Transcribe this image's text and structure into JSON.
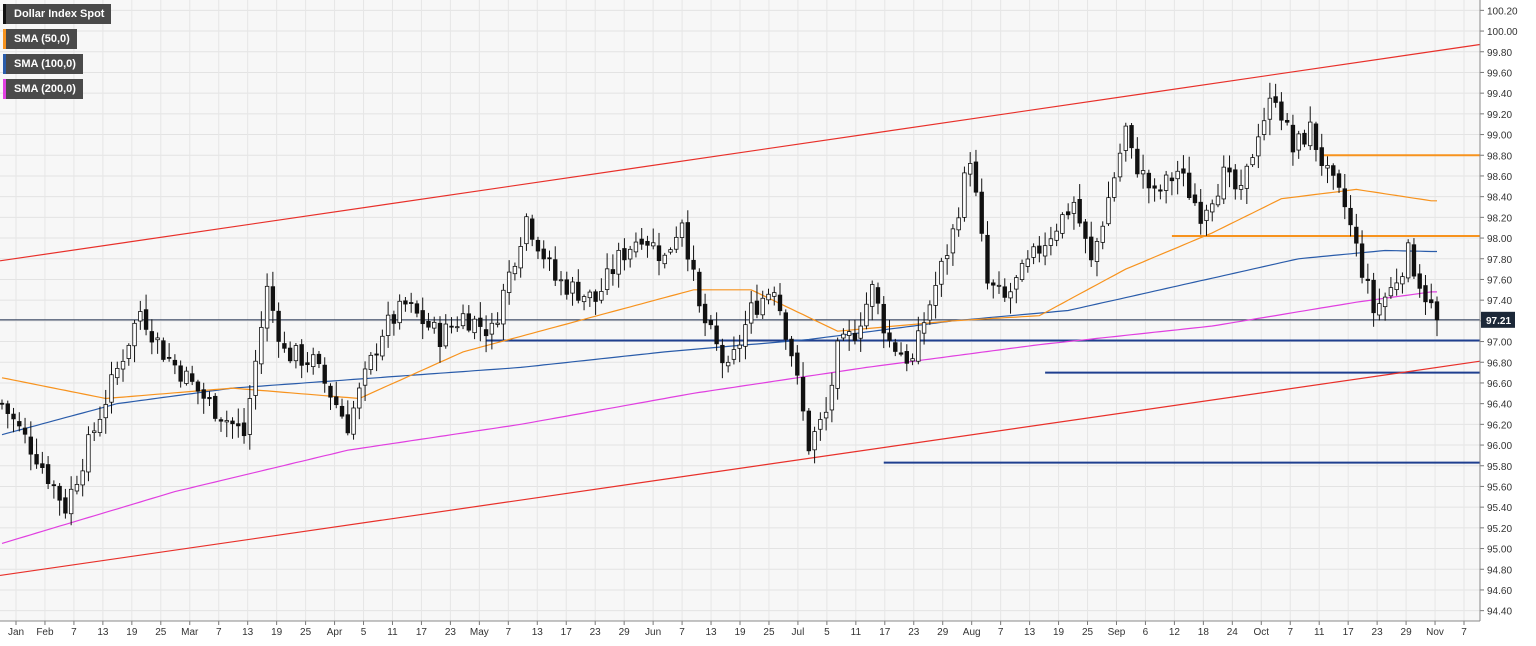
{
  "chart_data": {
    "type": "candlestick",
    "title": "Dollar Index Spot",
    "legend": [
      {
        "name": "Dollar Index Spot",
        "color": "#111111"
      },
      {
        "name": "SMA (50,0)",
        "color": "#f7931e"
      },
      {
        "name": "SMA (100,0)",
        "color": "#2a5caa"
      },
      {
        "name": "SMA (200,0)",
        "color": "#e040e0"
      }
    ],
    "legend_position": "top-left",
    "y_axis": {
      "position": "right",
      "range": [
        94.3,
        100.3
      ],
      "ticks": [
        "100.20",
        "100.00",
        "99.80",
        "99.60",
        "99.40",
        "99.20",
        "99.00",
        "98.80",
        "98.60",
        "98.40",
        "98.20",
        "98.00",
        "97.80",
        "97.60",
        "97.40",
        "97.20",
        "97.00",
        "96.80",
        "96.60",
        "96.40",
        "96.20",
        "96.00",
        "95.80",
        "95.60",
        "95.40",
        "95.20",
        "95.00",
        "94.80",
        "94.60",
        "94.40"
      ]
    },
    "x_axis": {
      "ticks": [
        "Jan",
        "Feb",
        "7",
        "13",
        "19",
        "25",
        "Mar",
        "7",
        "13",
        "19",
        "25",
        "Apr",
        "5",
        "11",
        "17",
        "23",
        "May",
        "7",
        "13",
        "17",
        "23",
        "29",
        "Jun",
        "7",
        "13",
        "19",
        "25",
        "Jul",
        "5",
        "11",
        "17",
        "23",
        "29",
        "Aug",
        "7",
        "13",
        "19",
        "25",
        "Sep",
        "6",
        "12",
        "18",
        "24",
        "Oct",
        "7",
        "11",
        "17",
        "23",
        "29",
        "Nov",
        "7"
      ]
    },
    "grid": true,
    "last_price": {
      "label": "97.21",
      "value": 97.21
    },
    "channel_upper": {
      "start": 97.78,
      "end": 99.87,
      "color": "#e8302a"
    },
    "channel_lower": {
      "start": 94.74,
      "end": 96.81,
      "color": "#e8302a"
    },
    "horizontal_levels": [
      {
        "value": 98.8,
        "color": "#f7931e"
      },
      {
        "value": 98.02,
        "color": "#f7931e"
      },
      {
        "value": 97.01,
        "color": "#1f3f8f"
      },
      {
        "value": 96.7,
        "color": "#1f3f8f"
      },
      {
        "value": 95.83,
        "color": "#1f3f8f"
      }
    ],
    "price_waypoints": [
      [
        0,
        96.4
      ],
      [
        6,
        95.9
      ],
      [
        11,
        95.4
      ],
      [
        17,
        96.3
      ],
      [
        24,
        97.3
      ],
      [
        28,
        96.9
      ],
      [
        36,
        96.4
      ],
      [
        42,
        96.1
      ],
      [
        46,
        97.5
      ],
      [
        49,
        96.9
      ],
      [
        54,
        96.8
      ],
      [
        60,
        96.2
      ],
      [
        62,
        96.5
      ],
      [
        66,
        97.1
      ],
      [
        70,
        97.35
      ],
      [
        76,
        97.05
      ],
      [
        80,
        97.25
      ],
      [
        85,
        97.1
      ],
      [
        91,
        98.2
      ],
      [
        96,
        97.6
      ],
      [
        103,
        97.4
      ],
      [
        107,
        97.8
      ],
      [
        111,
        98.05
      ],
      [
        115,
        97.8
      ],
      [
        118,
        98.2
      ],
      [
        121,
        97.3
      ],
      [
        126,
        96.7
      ],
      [
        130,
        97.3
      ],
      [
        134,
        97.55
      ],
      [
        137,
        96.9
      ],
      [
        140,
        96.0
      ],
      [
        143,
        96.3
      ],
      [
        145,
        96.9
      ],
      [
        148,
        97.1
      ],
      [
        151,
        97.5
      ],
      [
        154,
        97.0
      ],
      [
        158,
        96.8
      ],
      [
        160,
        97.2
      ],
      [
        165,
        98.05
      ],
      [
        168,
        98.8
      ],
      [
        171,
        97.55
      ],
      [
        174,
        97.4
      ],
      [
        180,
        97.9
      ],
      [
        186,
        98.35
      ],
      [
        189,
        97.75
      ],
      [
        193,
        98.6
      ],
      [
        195,
        99.05
      ],
      [
        196,
        98.8
      ],
      [
        200,
        98.4
      ],
      [
        204,
        98.65
      ],
      [
        208,
        98.25
      ],
      [
        212,
        98.6
      ],
      [
        215,
        98.4
      ],
      [
        218,
        99.05
      ],
      [
        221,
        99.4
      ],
      [
        224,
        98.85
      ],
      [
        227,
        99.05
      ],
      [
        230,
        98.6
      ],
      [
        233,
        98.3
      ],
      [
        236,
        97.7
      ],
      [
        238,
        97.3
      ],
      [
        241,
        97.5
      ],
      [
        244,
        97.85
      ],
      [
        247,
        97.45
      ],
      [
        249,
        97.21
      ]
    ],
    "sma50_points": [
      [
        0,
        96.65
      ],
      [
        18,
        96.45
      ],
      [
        40,
        96.55
      ],
      [
        62,
        96.45
      ],
      [
        80,
        96.9
      ],
      [
        100,
        97.2
      ],
      [
        120,
        97.5
      ],
      [
        130,
        97.5
      ],
      [
        145,
        97.1
      ],
      [
        165,
        97.2
      ],
      [
        180,
        97.25
      ],
      [
        195,
        97.7
      ],
      [
        210,
        98.05
      ],
      [
        222,
        98.38
      ],
      [
        235,
        98.47
      ],
      [
        248,
        98.36
      ]
    ],
    "sma100_points": [
      [
        0,
        96.1
      ],
      [
        20,
        96.4
      ],
      [
        40,
        96.55
      ],
      [
        65,
        96.65
      ],
      [
        90,
        96.75
      ],
      [
        115,
        96.9
      ],
      [
        140,
        97.02
      ],
      [
        165,
        97.2
      ],
      [
        185,
        97.3
      ],
      [
        205,
        97.55
      ],
      [
        225,
        97.8
      ],
      [
        240,
        97.88
      ],
      [
        248,
        97.87
      ]
    ],
    "sma200_points": [
      [
        0,
        95.05
      ],
      [
        30,
        95.55
      ],
      [
        60,
        95.95
      ],
      [
        90,
        96.2
      ],
      [
        120,
        96.5
      ],
      [
        150,
        96.75
      ],
      [
        180,
        96.97
      ],
      [
        210,
        97.15
      ],
      [
        235,
        97.38
      ],
      [
        248,
        97.48
      ]
    ]
  }
}
